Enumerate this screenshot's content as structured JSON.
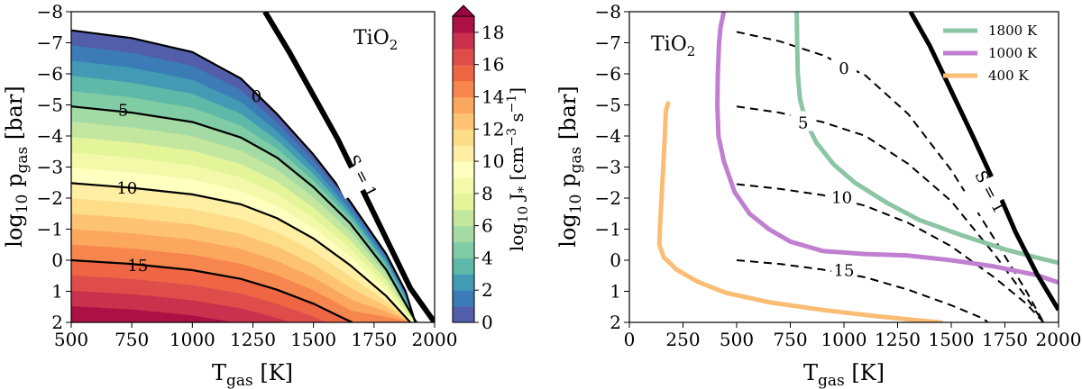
{
  "chart_data": [
    {
      "type": "contourf",
      "title": "TiO2",
      "title_main": "TiO",
      "title_sub": "2",
      "xlabel_main": "T",
      "xlabel_sub": "gas",
      "xlabel_unit": " [K]",
      "ylabel_prefix": "log",
      "ylabel_prefix_sub": "10",
      "ylabel_main": " p",
      "ylabel_sub": "gas",
      "ylabel_unit": " [bar]",
      "xlim": [
        500,
        2000
      ],
      "ylim": [
        2,
        -8
      ],
      "xticks": [
        500,
        750,
        1000,
        1250,
        1500,
        1750,
        2000
      ],
      "yticks": [
        -8,
        -7,
        -6,
        -5,
        -4,
        -3,
        -2,
        -1,
        0,
        1,
        2
      ],
      "ytick_labels": [
        "−8",
        "−7",
        "−6",
        "−5",
        "−4",
        "−3",
        "−2",
        "−1",
        "0",
        "1",
        "2"
      ],
      "colormap": "Spectral_r",
      "color_range": [
        0,
        19
      ],
      "colorbar": {
        "ticks": [
          0,
          2,
          4,
          6,
          8,
          10,
          12,
          14,
          16,
          18
        ],
        "label_prefix": "log",
        "label_prefix_sub": "10",
        "label_main": " J",
        "label_sub": "*",
        "label_unit": " [cm",
        "label_unit_exp1": "−3",
        "label_unit_mid": " s",
        "label_unit_exp2": "−1",
        "label_unit_end": "]",
        "extend": "max"
      },
      "contour_lines": [
        {
          "level": 0,
          "label": "0",
          "points": [
            [
              500,
              -7.4
            ],
            [
              750,
              -7.15
            ],
            [
              1000,
              -6.7
            ],
            [
              1200,
              -5.85
            ],
            [
              1350,
              -4.7
            ],
            [
              1500,
              -3.4
            ],
            [
              1650,
              -1.9
            ],
            [
              1800,
              -0.2
            ],
            [
              1880,
              1.0
            ],
            [
              1920,
              2.0
            ]
          ]
        },
        {
          "level": 5,
          "label": "5",
          "points": [
            [
              500,
              -4.95
            ],
            [
              750,
              -4.75
            ],
            [
              1000,
              -4.45
            ],
            [
              1200,
              -3.95
            ],
            [
              1350,
              -3.3
            ],
            [
              1500,
              -2.35
            ],
            [
              1650,
              -1.2
            ],
            [
              1800,
              0.3
            ],
            [
              1880,
              1.4
            ],
            [
              1925,
              2.0
            ]
          ]
        },
        {
          "level": 10,
          "label": "10",
          "points": [
            [
              500,
              -2.48
            ],
            [
              750,
              -2.33
            ],
            [
              1000,
              -2.12
            ],
            [
              1200,
              -1.8
            ],
            [
              1350,
              -1.35
            ],
            [
              1500,
              -0.7
            ],
            [
              1650,
              0.15
            ],
            [
              1800,
              1.15
            ],
            [
              1900,
              2.0
            ]
          ]
        },
        {
          "level": 15,
          "label": "15",
          "points": [
            [
              500,
              0.0
            ],
            [
              750,
              0.12
            ],
            [
              1000,
              0.32
            ],
            [
              1200,
              0.6
            ],
            [
              1350,
              0.95
            ],
            [
              1500,
              1.4
            ],
            [
              1600,
              1.78
            ],
            [
              1660,
              2.0
            ]
          ]
        }
      ],
      "saturation_line": {
        "label": "S = 1",
        "points": [
          [
            1300,
            -8.0
          ],
          [
            1400,
            -6.7
          ],
          [
            1500,
            -5.3
          ],
          [
            1600,
            -3.9
          ],
          [
            1700,
            -2.3
          ],
          [
            1800,
            -0.7
          ],
          [
            1900,
            0.9
          ],
          [
            2000,
            2.0
          ]
        ]
      }
    },
    {
      "type": "line",
      "title": "TiO2",
      "title_main": "TiO",
      "title_sub": "2",
      "xlabel_main": "T",
      "xlabel_sub": "gas",
      "xlabel_unit": " [K]",
      "ylabel_prefix": "log",
      "ylabel_prefix_sub": "10",
      "ylabel_main": " p",
      "ylabel_sub": "gas",
      "ylabel_unit": " [bar]",
      "xlim": [
        0,
        2000
      ],
      "ylim": [
        2,
        -8
      ],
      "xticks": [
        0,
        250,
        500,
        750,
        1000,
        1250,
        1500,
        1750,
        2000
      ],
      "yticks": [
        -8,
        -7,
        -6,
        -5,
        -4,
        -3,
        -2,
        -1,
        0,
        1,
        2
      ],
      "ytick_labels": [
        "−8",
        "−7",
        "−6",
        "−5",
        "−4",
        "−3",
        "−2",
        "−1",
        "0",
        "1",
        "2"
      ],
      "legend": {
        "location": "top-right"
      },
      "series": [
        {
          "name": "1800 K",
          "color": "#8cc5a4",
          "points": [
            [
              780,
              -8.0
            ],
            [
              782,
              -7.0
            ],
            [
              785,
              -6.0
            ],
            [
              795,
              -5.2
            ],
            [
              820,
              -4.5
            ],
            [
              870,
              -3.8
            ],
            [
              950,
              -3.1
            ],
            [
              1050,
              -2.5
            ],
            [
              1200,
              -1.85
            ],
            [
              1350,
              -1.3
            ],
            [
              1550,
              -0.8
            ],
            [
              1750,
              -0.35
            ],
            [
              1900,
              -0.08
            ],
            [
              2000,
              0.08
            ]
          ]
        },
        {
          "name": "1000 K",
          "color": "#c07fd0",
          "points": [
            [
              440,
              -8.0
            ],
            [
              425,
              -7.5
            ],
            [
              418,
              -7.0
            ],
            [
              412,
              -6.0
            ],
            [
              410,
              -5.0
            ],
            [
              415,
              -4.0
            ],
            [
              440,
              -3.2
            ],
            [
              490,
              -2.2
            ],
            [
              560,
              -1.5
            ],
            [
              650,
              -1.0
            ],
            [
              750,
              -0.6
            ],
            [
              900,
              -0.3
            ],
            [
              1100,
              -0.2
            ],
            [
              1300,
              -0.15
            ],
            [
              1500,
              0.0
            ],
            [
              1700,
              0.2
            ],
            [
              1900,
              0.48
            ],
            [
              2000,
              0.72
            ]
          ]
        },
        {
          "name": "400 K",
          "color": "#fbbd74",
          "points": [
            [
              180,
              -5.05
            ],
            [
              170,
              -4.8
            ],
            [
              165,
              -4.0
            ],
            [
              158,
              -3.0
            ],
            [
              150,
              -2.0
            ],
            [
              142,
              -1.0
            ],
            [
              140,
              -0.5
            ],
            [
              160,
              -0.1
            ],
            [
              220,
              0.3
            ],
            [
              320,
              0.7
            ],
            [
              450,
              1.05
            ],
            [
              650,
              1.35
            ],
            [
              900,
              1.6
            ],
            [
              1150,
              1.8
            ],
            [
              1400,
              1.97
            ],
            [
              1450,
              2.0
            ]
          ]
        }
      ],
      "contour_lines": [
        {
          "level": 0,
          "label": "0",
          "points": [
            [
              500,
              -7.35
            ],
            [
              700,
              -7.05
            ],
            [
              900,
              -6.6
            ],
            [
              1100,
              -5.95
            ],
            [
              1300,
              -4.7
            ],
            [
              1500,
              -2.9
            ],
            [
              1700,
              -0.7
            ],
            [
              1850,
              1.0
            ],
            [
              1930,
              2.0
            ]
          ]
        },
        {
          "level": 5,
          "label": "5",
          "points": [
            [
              500,
              -4.95
            ],
            [
              700,
              -4.75
            ],
            [
              900,
              -4.45
            ],
            [
              1100,
              -4.0
            ],
            [
              1300,
              -3.1
            ],
            [
              1500,
              -1.9
            ],
            [
              1700,
              -0.2
            ],
            [
              1850,
              1.2
            ],
            [
              1930,
              2.0
            ]
          ]
        },
        {
          "level": 10,
          "label": "10",
          "points": [
            [
              500,
              -2.45
            ],
            [
              700,
              -2.3
            ],
            [
              900,
              -2.1
            ],
            [
              1100,
              -1.75
            ],
            [
              1300,
              -1.2
            ],
            [
              1500,
              -0.45
            ],
            [
              1700,
              0.55
            ],
            [
              1850,
              1.4
            ],
            [
              1930,
              2.0
            ]
          ]
        },
        {
          "level": 15,
          "label": "15",
          "points": [
            [
              500,
              0.0
            ],
            [
              700,
              0.12
            ],
            [
              900,
              0.3
            ],
            [
              1100,
              0.55
            ],
            [
              1300,
              0.95
            ],
            [
              1500,
              1.45
            ],
            [
              1650,
              1.88
            ],
            [
              1670,
              2.0
            ]
          ]
        }
      ],
      "saturation_line": {
        "label": "S = 1",
        "points": [
          [
            1310,
            -8.0
          ],
          [
            1400,
            -6.9
          ],
          [
            1500,
            -5.45
          ],
          [
            1600,
            -4.0
          ],
          [
            1700,
            -2.5
          ],
          [
            1800,
            -0.9
          ],
          [
            1900,
            0.45
          ],
          [
            2000,
            1.6
          ]
        ]
      }
    }
  ]
}
